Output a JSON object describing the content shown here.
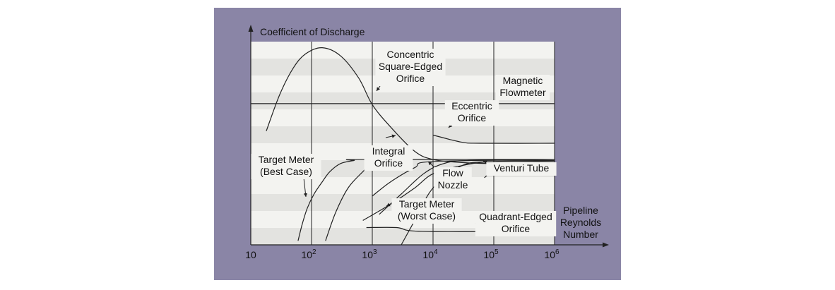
{
  "chart_data": {
    "type": "line",
    "x_scale": "log",
    "y_title": "Coefficient of Discharge",
    "x_title_lines": [
      "Pipeline",
      "Reynolds",
      "Number"
    ],
    "x_ticks": [
      {
        "value": 10,
        "base": "10",
        "exp": ""
      },
      {
        "value": 100,
        "base": "10",
        "exp": "2"
      },
      {
        "value": 1000,
        "base": "10",
        "exp": "3"
      },
      {
        "value": 10000,
        "base": "10",
        "exp": "4"
      },
      {
        "value": 100000,
        "base": "10",
        "exp": "5"
      },
      {
        "value": 1000000,
        "base": "10",
        "exp": "6"
      }
    ],
    "xlim": [
      10,
      1000000
    ],
    "grid": "vertical lines at each decade, alternating horizontal bands",
    "colors": {
      "panel": "#8a85a6",
      "plot": "#f3f3f0",
      "band": "#e3e3e0",
      "line": "#222222"
    },
    "series": [
      {
        "x": [
          18,
          30,
          50,
          80,
          150,
          300,
          600,
          1000,
          2000,
          5000,
          10000,
          30000,
          100000,
          1000000
        ],
        "y": [
          0.56,
          0.74,
          0.87,
          0.94,
          0.97,
          0.93,
          0.82,
          0.69,
          0.58,
          0.46,
          0.42,
          0.405,
          0.4,
          0.4
        ]
      },
      {
        "x": [
          10,
          1000000
        ],
        "y": [
          0.695,
          0.695
        ]
      },
      {
        "x": [
          10000,
          30000,
          60000,
          1000000
        ],
        "y": [
          0.54,
          0.505,
          0.5,
          0.5
        ]
      },
      {
        "x": [
          60,
          70,
          85,
          110,
          150,
          200,
          300,
          500,
          700,
          1000000
        ],
        "y": [
          0.02,
          0.1,
          0.18,
          0.25,
          0.31,
          0.36,
          0.4,
          0.415,
          0.42,
          0.42
        ]
      },
      {
        "x": [
          170,
          250,
          400,
          700,
          1000,
          2000,
          5000,
          10000,
          30000,
          1000000
        ],
        "y": [
          0.02,
          0.16,
          0.28,
          0.36,
          0.4,
          0.41,
          0.42,
          0.42,
          0.42,
          0.42
        ]
      },
      {
        "x": [
          1000,
          2000,
          5000,
          10000,
          1000000
        ],
        "y": [
          0.24,
          0.31,
          0.38,
          0.41,
          0.42
        ]
      },
      {
        "x": [
          1300,
          3000,
          7000,
          15000,
          40000,
          1000000
        ],
        "y": [
          0.15,
          0.25,
          0.35,
          0.4,
          0.415,
          0.415
        ]
      },
      {
        "x": [
          700,
          2000,
          5000,
          10000,
          30000,
          100000,
          1000000
        ],
        "y": [
          0.12,
          0.2,
          0.28,
          0.35,
          0.39,
          0.41,
          0.41
        ]
      },
      {
        "x": [
          3000,
          5000,
          10000,
          30000,
          100000,
          1000000
        ],
        "y": [
          0.0,
          0.12,
          0.28,
          0.39,
          0.41,
          0.41
        ]
      },
      {
        "x": [
          70000,
          100000,
          150000,
          300000,
          1000000
        ],
        "y": [
          0.33,
          0.37,
          0.39,
          0.4,
          0.4
        ]
      },
      {
        "x": [
          800,
          2500,
          4000,
          10000,
          100000
        ],
        "y": [
          0.085,
          0.085,
          0.07,
          0.065,
          0.065
        ]
      }
    ],
    "annotations": [
      {
        "text": [
          "Concentric",
          "Square-Edged",
          "Orifice"
        ]
      },
      {
        "text": [
          "Magnetic",
          "Flowmeter"
        ]
      },
      {
        "text": [
          "Eccentric",
          "Orifice"
        ]
      },
      {
        "text": [
          "Integral",
          "Orifice"
        ]
      },
      {
        "text": [
          "Target Meter",
          "(Best Case)"
        ]
      },
      {
        "text": [
          "Flow",
          "Nozzle"
        ]
      },
      {
        "text": [
          "Venturi Tube"
        ]
      },
      {
        "text": [
          "Target Meter",
          "(Worst Case)"
        ]
      },
      {
        "text": [
          "Quadrant-Edged",
          "Orifice"
        ]
      }
    ]
  }
}
